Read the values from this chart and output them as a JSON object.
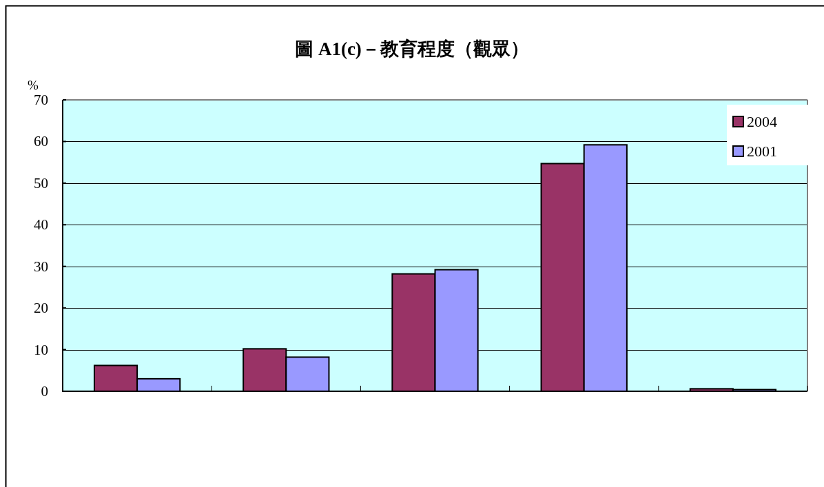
{
  "chart_data": {
    "type": "bar",
    "title": "圖 A1(c)－教育程度（觀眾）",
    "ylabel": "%",
    "categories": [
      null,
      null,
      null,
      null,
      null
    ],
    "series": [
      {
        "name": "2004",
        "color": "#993366",
        "values": [
          6.2,
          10.2,
          28.2,
          54.7,
          0.6
        ]
      },
      {
        "name": "2001",
        "color": "#9999ff",
        "values": [
          3.0,
          8.2,
          29.2,
          59.2,
          0.4
        ]
      }
    ],
    "ylim": [
      0,
      70
    ],
    "yticks": [
      0,
      10,
      20,
      30,
      40,
      50,
      60,
      70
    ],
    "grid": "y",
    "legend": "top right",
    "tick_labels": "y"
  }
}
